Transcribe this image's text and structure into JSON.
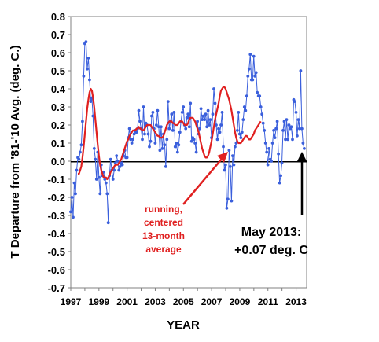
{
  "chart_data": {
    "type": "line",
    "xlabel": "YEAR",
    "ylabel": "T Departure from '81-'10 Avg. (deg. C.)",
    "ylim": [
      -0.7,
      0.8
    ],
    "xlim": [
      1997,
      2013.75
    ],
    "y_ticks": [
      "0.8",
      "0.7",
      "0.6",
      "0.5",
      "0.4",
      "0.3",
      "0.2",
      "0.1",
      "0.0",
      "-0.1",
      "-0.2",
      "-0.3",
      "-0.4",
      "-0.5",
      "-0.6",
      "-0.7"
    ],
    "x_ticks": [
      "1997",
      "1999",
      "2001",
      "2003",
      "2005",
      "2007",
      "2009",
      "2011",
      "2013"
    ],
    "grid": false,
    "zero_line": true,
    "colors": {
      "monthly": "#3a5fdc",
      "running": "#e02020",
      "annotation_arrow_red": "#e02020",
      "annotation_arrow_black": "#000000"
    },
    "annotations": [
      {
        "lines": [
          "running,",
          "centered",
          "13-month",
          "average"
        ],
        "color": "#e02020"
      },
      {
        "lines": [
          "May 2013:",
          "+0.07 deg. C"
        ],
        "color": "#000000"
      }
    ],
    "series": [
      {
        "marker": "circle",
        "start": 1997.0,
        "step": 0.0833,
        "values": [
          -0.28,
          -0.2,
          -0.31,
          -0.12,
          -0.18,
          -0.05,
          0.02,
          0.01,
          0.05,
          0.09,
          0.22,
          0.47,
          0.65,
          0.66,
          0.51,
          0.57,
          0.45,
          0.33,
          0.35,
          0.25,
          0.07,
          0.01,
          -0.1,
          0.05,
          -0.09,
          -0.18,
          -0.02,
          -0.08,
          -0.06,
          -0.1,
          -0.12,
          -0.18,
          -0.34,
          -0.08,
          0.01,
          -0.05,
          -0.1,
          -0.05,
          -0.01,
          0.03,
          0.0,
          -0.05,
          -0.03,
          -0.01,
          -0.02,
          0.03,
          0.06,
          0.02,
          0.02,
          0.13,
          0.18,
          0.12,
          0.1,
          0.12,
          0.15,
          0.17,
          0.16,
          0.18,
          0.28,
          0.22,
          0.18,
          0.12,
          0.3,
          0.15,
          0.21,
          0.2,
          0.15,
          0.08,
          0.11,
          0.25,
          0.27,
          0.18,
          0.1,
          0.2,
          0.28,
          0.19,
          0.06,
          0.19,
          0.07,
          0.15,
          0.09,
          -0.03,
          0.12,
          0.33,
          0.18,
          0.22,
          0.26,
          0.17,
          0.27,
          0.08,
          0.1,
          0.05,
          0.09,
          0.16,
          0.22,
          0.27,
          0.3,
          0.2,
          0.18,
          0.24,
          0.26,
          0.19,
          0.32,
          0.11,
          0.13,
          0.12,
          0.1,
          0.05,
          0.22,
          0.15,
          0.18,
          0.29,
          0.23,
          0.25,
          0.23,
          0.26,
          0.19,
          0.28,
          0.2,
          0.23,
          0.13,
          0.26,
          0.4,
          0.32,
          0.2,
          0.12,
          0.18,
          0.16,
          0.2,
          0.27,
          0.08,
          -0.05,
          -0.02,
          -0.26,
          -0.21,
          0.06,
          -0.03,
          -0.22,
          0.03,
          -0.02,
          0.08,
          0.1,
          0.17,
          0.27,
          0.15,
          0.13,
          0.16,
          0.23,
          0.3,
          0.28,
          0.36,
          0.47,
          0.51,
          0.59,
          0.45,
          0.45,
          0.58,
          0.47,
          0.49,
          0.38,
          0.36,
          0.36,
          0.3,
          0.26,
          0.21,
          0.17,
          0.1,
          0.05,
          -0.02,
          0.07,
          0.01,
          0.0,
          0.1,
          0.17,
          0.13,
          0.18,
          0.22,
          0.04,
          -0.12,
          -0.08,
          -0.01,
          0.17,
          0.22,
          0.12,
          0.23,
          0.12,
          0.2,
          0.18,
          0.19,
          0.12,
          0.34,
          0.33,
          0.27,
          0.14,
          0.23,
          0.18,
          0.5,
          0.18,
          0.1,
          0.07
        ]
      },
      {
        "marker": "none",
        "start": 1997.5,
        "step": 0.0833,
        "values": [
          -0.07,
          -0.07,
          -0.05,
          -0.03,
          0.02,
          0.08,
          0.15,
          0.22,
          0.29,
          0.34,
          0.38,
          0.4,
          0.39,
          0.35,
          0.3,
          0.23,
          0.16,
          0.09,
          0.03,
          -0.02,
          -0.05,
          -0.07,
          -0.09,
          -0.09,
          -0.09,
          -0.1,
          -0.09,
          -0.08,
          -0.06,
          -0.05,
          -0.04,
          -0.03,
          -0.02,
          -0.02,
          -0.02,
          -0.01,
          0.0,
          0.01,
          0.03,
          0.05,
          0.07,
          0.09,
          0.11,
          0.12,
          0.14,
          0.15,
          0.16,
          0.17,
          0.17,
          0.17,
          0.18,
          0.18,
          0.19,
          0.18,
          0.18,
          0.17,
          0.17,
          0.18,
          0.19,
          0.2,
          0.2,
          0.2,
          0.2,
          0.19,
          0.18,
          0.17,
          0.16,
          0.15,
          0.14,
          0.14,
          0.13,
          0.13,
          0.13,
          0.14,
          0.16,
          0.18,
          0.2,
          0.21,
          0.22,
          0.22,
          0.22,
          0.21,
          0.21,
          0.2,
          0.2,
          0.2,
          0.21,
          0.22,
          0.22,
          0.22,
          0.21,
          0.2,
          0.2,
          0.2,
          0.21,
          0.23,
          0.24,
          0.24,
          0.24,
          0.23,
          0.22,
          0.2,
          0.18,
          0.16,
          0.13,
          0.1,
          0.07,
          0.05,
          0.03,
          0.02,
          0.02,
          0.03,
          0.05,
          0.08,
          0.11,
          0.15,
          0.19,
          0.23,
          0.26,
          0.29,
          0.32,
          0.36,
          0.39,
          0.4,
          0.41,
          0.41,
          0.4,
          0.38,
          0.36,
          0.34,
          0.31,
          0.28,
          0.24,
          0.2,
          0.16,
          0.13,
          0.11,
          0.1,
          0.1,
          0.1,
          0.11,
          0.12,
          0.13,
          0.14,
          0.14,
          0.13,
          0.12,
          0.12,
          0.13,
          0.14,
          0.15,
          0.17,
          0.18,
          0.19,
          0.2,
          0.21,
          0.22
        ]
      }
    ]
  }
}
